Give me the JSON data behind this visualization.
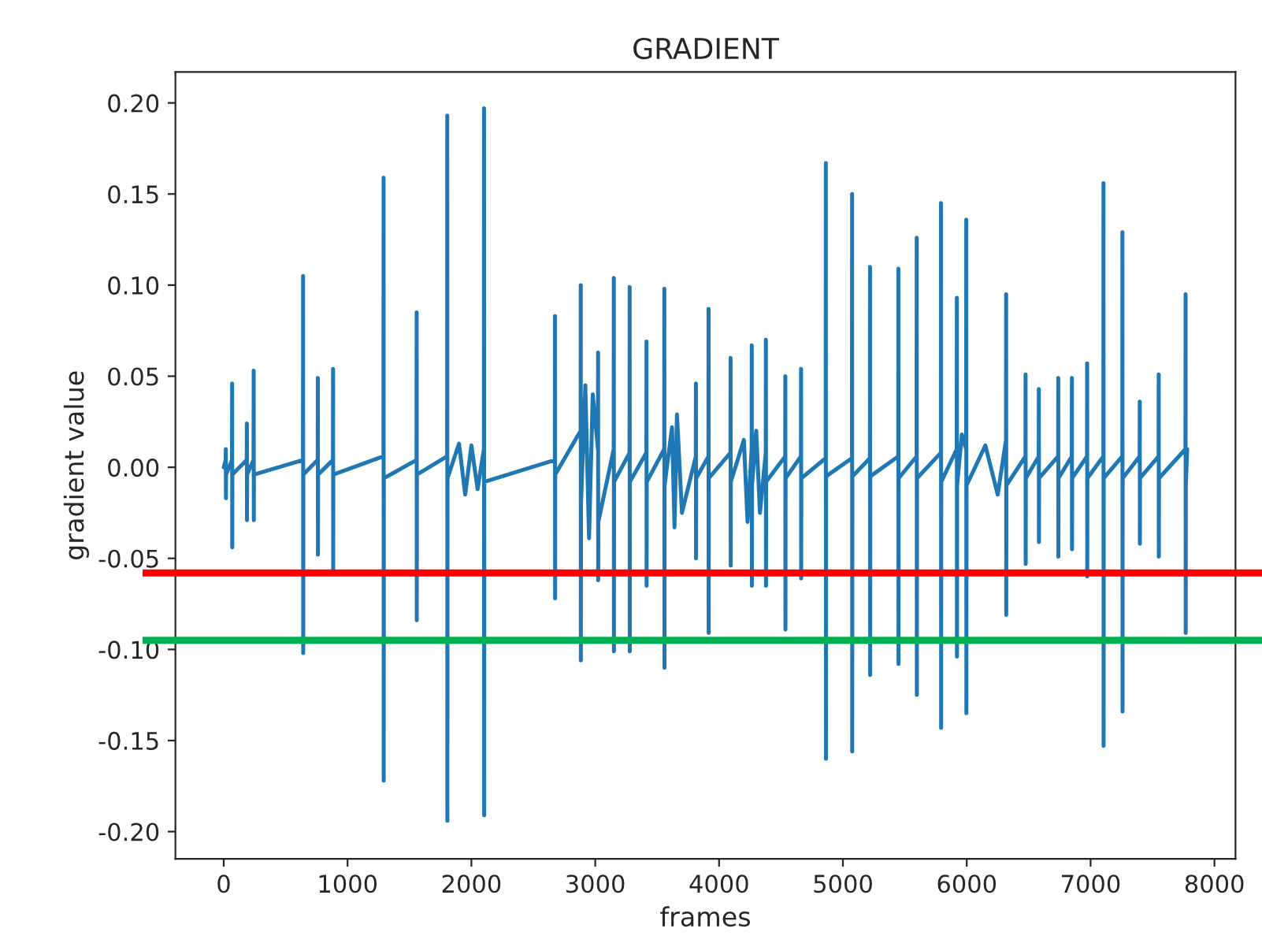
{
  "chart_data": {
    "type": "line",
    "title": "GRADIENT",
    "xlabel": "frames",
    "ylabel": "gradient value",
    "xlim": [
      -390,
      8170
    ],
    "ylim": [
      -0.215,
      0.217
    ],
    "xticks": [
      0,
      1000,
      2000,
      3000,
      4000,
      5000,
      6000,
      7000,
      8000
    ],
    "yticks": [
      {
        "value": -0.2,
        "label": "-0.20"
      },
      {
        "value": -0.15,
        "label": "-0.15"
      },
      {
        "value": -0.1,
        "label": "-0.10"
      },
      {
        "value": -0.05,
        "label": "-0.05"
      },
      {
        "value": 0,
        "label": "0.00"
      },
      {
        "value": 0.05,
        "label": "0.05"
      },
      {
        "value": 0.1,
        "label": "0.10"
      },
      {
        "value": 0.15,
        "label": "0.15"
      },
      {
        "value": 0.2,
        "label": "0.20"
      }
    ],
    "grid": false,
    "marker": "none",
    "line_style": "solid",
    "ref_lines": [
      {
        "axis": "y",
        "value": -0.058,
        "color": "#ff0000",
        "line_style": "solid"
      },
      {
        "axis": "y",
        "value": -0.095,
        "color": "#00b050",
        "line_style": "solid"
      }
    ],
    "series": [
      {
        "color": "#1f77b4",
        "x": [
          0,
          16,
          17,
          18,
          19,
          67,
          68,
          69,
          70,
          186,
          187,
          188,
          189,
          241,
          242,
          243,
          244,
          640,
          641,
          642,
          643,
          759,
          760,
          761,
          762,
          882,
          883,
          884,
          885,
          1290,
          1291,
          1292,
          1293,
          1557,
          1558,
          1559,
          1560,
          1804,
          1805,
          1806,
          1807,
          1900,
          1950,
          2000,
          2050,
          2101,
          2102,
          2103,
          2104,
          2674,
          2675,
          2676,
          2677,
          2882,
          2883,
          2884,
          2885,
          2920,
          2950,
          2980,
          3022,
          3023,
          3024,
          3025,
          3149,
          3150,
          3151,
          3152,
          3277,
          3278,
          3279,
          3280,
          3413,
          3414,
          3415,
          3416,
          3557,
          3558,
          3559,
          3560,
          3620,
          3640,
          3660,
          3700,
          3812,
          3813,
          3814,
          3815,
          3914,
          3915,
          3916,
          3917,
          4092,
          4093,
          4094,
          4095,
          4200,
          4230,
          4263,
          4264,
          4265,
          4266,
          4300,
          4330,
          4377,
          4378,
          4379,
          4380,
          4534,
          4535,
          4536,
          4537,
          4661,
          4662,
          4663,
          4664,
          4861,
          4862,
          4863,
          4864,
          5073,
          5074,
          5075,
          5076,
          5218,
          5219,
          5220,
          5221,
          5447,
          5448,
          5449,
          5450,
          5595,
          5596,
          5597,
          5598,
          5791,
          5792,
          5793,
          5794,
          5919,
          5920,
          5921,
          5922,
          5960,
          5995,
          5996,
          5997,
          5998,
          6150,
          6250,
          6317,
          6318,
          6319,
          6320,
          6474,
          6475,
          6476,
          6477,
          6581,
          6582,
          6583,
          6584,
          6738,
          6739,
          6740,
          6741,
          6848,
          6849,
          6850,
          6851,
          6971,
          6972,
          6973,
          6974,
          7103,
          7104,
          7105,
          7106,
          7256,
          7257,
          7258,
          7259,
          7396,
          7397,
          7398,
          7399,
          7549,
          7550,
          7551,
          7552,
          7766,
          7767,
          7768,
          7769,
          7780
        ],
        "values": [
          0.0,
          0.004,
          0.01,
          -0.017,
          -0.004,
          0.004,
          0.046,
          -0.044,
          -0.004,
          0.004,
          0.024,
          -0.029,
          -0.004,
          0.004,
          0.053,
          -0.029,
          -0.004,
          0.004,
          0.105,
          -0.102,
          -0.004,
          0.004,
          0.049,
          -0.048,
          -0.004,
          0.004,
          0.054,
          -0.056,
          -0.004,
          0.006,
          0.159,
          -0.172,
          -0.006,
          0.004,
          0.085,
          -0.084,
          -0.004,
          0.006,
          0.193,
          -0.194,
          -0.006,
          0.013,
          -0.015,
          0.012,
          -0.012,
          0.01,
          0.197,
          -0.191,
          -0.008,
          0.004,
          0.083,
          -0.072,
          -0.004,
          0.02,
          0.1,
          -0.106,
          -0.02,
          0.045,
          -0.039,
          0.04,
          0.01,
          0.063,
          -0.062,
          -0.03,
          0.01,
          0.104,
          -0.101,
          -0.008,
          0.008,
          0.099,
          -0.101,
          -0.008,
          0.008,
          0.069,
          -0.065,
          -0.008,
          0.01,
          0.098,
          -0.11,
          -0.01,
          0.022,
          -0.033,
          0.029,
          -0.025,
          0.006,
          0.046,
          -0.05,
          -0.006,
          0.006,
          0.087,
          -0.091,
          -0.006,
          0.008,
          0.06,
          -0.054,
          -0.008,
          0.015,
          -0.03,
          0.01,
          0.067,
          -0.065,
          -0.01,
          0.02,
          -0.025,
          0.008,
          0.07,
          -0.065,
          -0.008,
          0.006,
          0.05,
          -0.089,
          -0.006,
          0.006,
          0.054,
          -0.061,
          -0.006,
          0.005,
          0.167,
          -0.16,
          -0.005,
          0.005,
          0.15,
          -0.156,
          -0.005,
          0.005,
          0.11,
          -0.114,
          -0.005,
          0.006,
          0.109,
          -0.108,
          -0.006,
          0.006,
          0.126,
          -0.125,
          -0.006,
          0.008,
          0.145,
          -0.143,
          -0.008,
          0.01,
          0.093,
          -0.104,
          -0.01,
          0.018,
          0.01,
          0.136,
          -0.135,
          -0.01,
          0.012,
          -0.015,
          0.015,
          0.095,
          -0.081,
          -0.01,
          0.006,
          0.051,
          -0.053,
          -0.006,
          0.006,
          0.043,
          -0.041,
          -0.006,
          0.006,
          0.049,
          -0.049,
          -0.006,
          0.006,
          0.049,
          -0.045,
          -0.006,
          0.006,
          0.057,
          -0.06,
          -0.006,
          0.006,
          0.156,
          -0.153,
          -0.006,
          0.006,
          0.129,
          -0.134,
          -0.006,
          0.006,
          0.036,
          -0.042,
          -0.006,
          0.006,
          0.051,
          -0.049,
          -0.006,
          0.01,
          0.095,
          -0.091,
          -0.01,
          0.01
        ]
      }
    ]
  }
}
